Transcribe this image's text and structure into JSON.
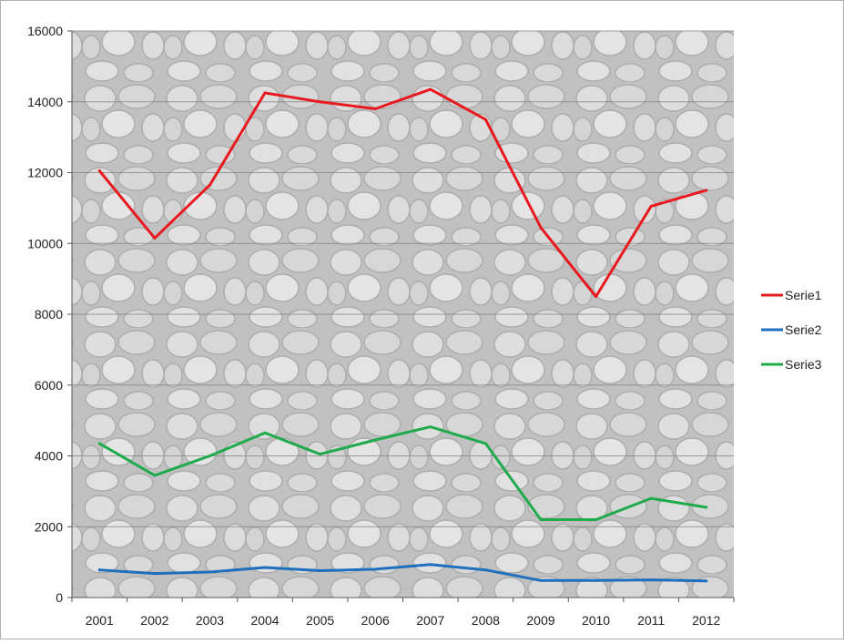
{
  "chart_data": {
    "type": "line",
    "x": [
      "2001",
      "2002",
      "2003",
      "2004",
      "2005",
      "2006",
      "2007",
      "2008",
      "2009",
      "2010",
      "2011",
      "2012"
    ],
    "series": [
      {
        "name": "Serie1",
        "color": "#e8191f",
        "values": [
          12050,
          10150,
          11650,
          14250,
          14000,
          13800,
          14350,
          13500,
          10450,
          8500,
          11050,
          11500
        ]
      },
      {
        "name": "Serie2",
        "color": "#1f6fbf",
        "values": [
          780,
          680,
          720,
          850,
          760,
          800,
          930,
          780,
          480,
          480,
          500,
          470
        ]
      },
      {
        "name": "Serie3",
        "color": "#1faa4b",
        "values": [
          4350,
          3450,
          4000,
          4650,
          4050,
          4450,
          4820,
          4350,
          2200,
          2200,
          2800,
          2550
        ]
      }
    ],
    "yticks": [
      "0",
      "2000",
      "4000",
      "6000",
      "8000",
      "10000",
      "12000",
      "14000",
      "16000"
    ],
    "ylim": [
      0,
      16000
    ],
    "grid": true,
    "legend": "right"
  }
}
